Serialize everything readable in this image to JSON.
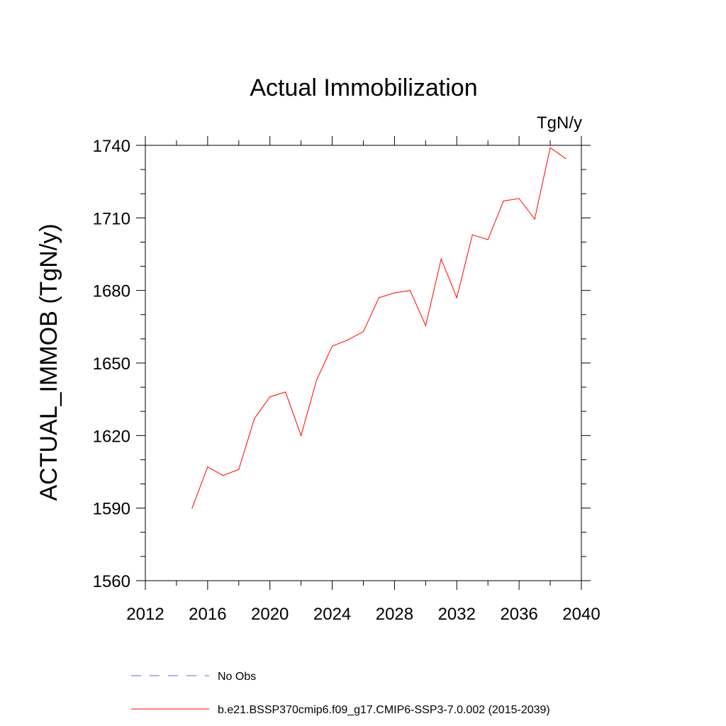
{
  "chart_data": {
    "type": "line",
    "title": "Actual Immobilization",
    "units_label": "TgN/y",
    "ylabel": "ACTUAL_IMMOB  (TgN/y)",
    "xlabel": "",
    "xlim": [
      2012,
      2040
    ],
    "ylim": [
      1560,
      1740
    ],
    "x_ticks": [
      2012,
      2016,
      2020,
      2024,
      2028,
      2032,
      2036,
      2040
    ],
    "y_ticks": [
      1560,
      1590,
      1620,
      1650,
      1680,
      1710,
      1740
    ],
    "x_minor_step": 2,
    "y_minor_step": 10,
    "grid": false,
    "legend_placement": "bottom",
    "series": [
      {
        "name": "b.e21.BSSP370cmip6.f09_g17.CMIP6-SSP3-7.0.002 (2015-2039)",
        "color": "#ff0000",
        "dash": "solid",
        "x": [
          2015,
          2016,
          2017,
          2018,
          2019,
          2020,
          2021,
          2022,
          2023,
          2024,
          2025,
          2026,
          2027,
          2028,
          2029,
          2030,
          2031,
          2032,
          2033,
          2034,
          2035,
          2036,
          2037,
          2038,
          2039
        ],
        "y": [
          1590,
          1607,
          1603.5,
          1606,
          1627,
          1636,
          1638,
          1620,
          1643,
          1657,
          1659.5,
          1663,
          1677,
          1679,
          1680,
          1665.5,
          1693,
          1677,
          1703,
          1701,
          1717,
          1718,
          1709.5,
          1739,
          1734.5
        ]
      }
    ],
    "legend": [
      {
        "label": "No Obs",
        "color": "#6a6ad0",
        "dash": "dashed"
      },
      {
        "label": "b.e21.BSSP370cmip6.f09_g17.CMIP6-SSP3-7.0.002 (2015-2039)",
        "color": "#ff0000",
        "dash": "solid"
      }
    ]
  }
}
